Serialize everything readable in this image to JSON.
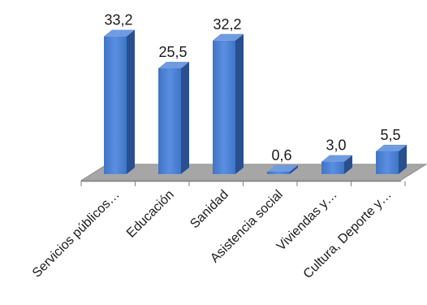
{
  "chart_data": {
    "type": "bar",
    "categories": [
      "Servicios públicos…",
      "Educación",
      "Sanidad",
      "Asistencia social",
      "Viviendas y…",
      "Cultura, Deporte y…"
    ],
    "values": [
      33.2,
      25.5,
      32.2,
      0.6,
      3.0,
      5.5
    ],
    "value_labels": [
      "33,2",
      "25,5",
      "32,2",
      "0,6",
      "3,0",
      "5,5"
    ],
    "title": "",
    "xlabel": "",
    "ylabel": "",
    "ylim": [
      0,
      35
    ],
    "grid": false,
    "style": "3d-column",
    "colors": {
      "bar_front": "#4a7fd0",
      "bar_side": "#2b4f8c",
      "bar_top": "#6f9be0",
      "floor": "#a6a6a6",
      "floor_edge": "#8c8c8c"
    }
  }
}
